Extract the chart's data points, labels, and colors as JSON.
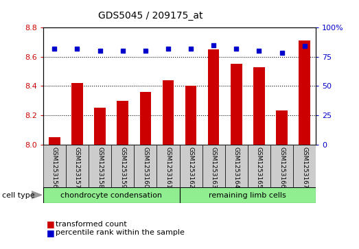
{
  "title": "GDS5045 / 209175_at",
  "categories": [
    "GSM1253156",
    "GSM1253157",
    "GSM1253158",
    "GSM1253159",
    "GSM1253160",
    "GSM1253161",
    "GSM1253162",
    "GSM1253163",
    "GSM1253164",
    "GSM1253165",
    "GSM1253166",
    "GSM1253167"
  ],
  "transformed_count": [
    8.05,
    8.42,
    8.25,
    8.3,
    8.36,
    8.44,
    8.4,
    8.65,
    8.55,
    8.53,
    8.23,
    8.71
  ],
  "percentile_rank": [
    82,
    82,
    80,
    80,
    80,
    82,
    82,
    85,
    82,
    80,
    78,
    84
  ],
  "cell_types": [
    {
      "label": "chondrocyte condensation",
      "start": 0,
      "end": 6,
      "color": "#90ee90"
    },
    {
      "label": "remaining limb cells",
      "start": 6,
      "end": 12,
      "color": "#90ee90"
    }
  ],
  "ylim_left": [
    8.0,
    8.8
  ],
  "ylim_right": [
    0,
    100
  ],
  "yticks_left": [
    8.0,
    8.2,
    8.4,
    8.6,
    8.8
  ],
  "yticks_right": [
    0,
    25,
    50,
    75,
    100
  ],
  "bar_color": "#cc0000",
  "dot_color": "#0000cc",
  "bar_width": 0.5,
  "legend_labels": [
    "transformed count",
    "percentile rank within the sample"
  ],
  "legend_colors": [
    "#cc0000",
    "#0000cc"
  ],
  "title_color": "#cc0000",
  "left_tick_color": "#cc0000",
  "right_tick_color": "#0000cc",
  "bg_color": "#cccccc",
  "plot_bg_color": "#ffffff"
}
